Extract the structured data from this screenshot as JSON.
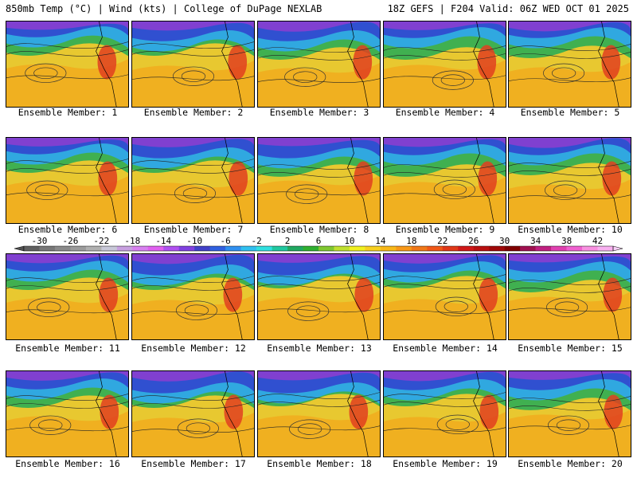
{
  "header": {
    "left": "850mb Temp (°C) | Wind (kts) | College of DuPage NEXLAB",
    "right": "18Z GEFS | F204 Valid: 06Z WED OCT 01 2025"
  },
  "members": [
    {
      "label": "Ensemble Member: 1"
    },
    {
      "label": "Ensemble Member: 2"
    },
    {
      "label": "Ensemble Member: 3"
    },
    {
      "label": "Ensemble Member: 4"
    },
    {
      "label": "Ensemble Member: 5"
    },
    {
      "label": "Ensemble Member: 6"
    },
    {
      "label": "Ensemble Member: 7"
    },
    {
      "label": "Ensemble Member: 8"
    },
    {
      "label": "Ensemble Member: 9"
    },
    {
      "label": "Ensemble Member: 10"
    },
    {
      "label": "Ensemble Member: 11"
    },
    {
      "label": "Ensemble Member: 12"
    },
    {
      "label": "Ensemble Member: 13"
    },
    {
      "label": "Ensemble Member: 14"
    },
    {
      "label": "Ensemble Member: 15"
    },
    {
      "label": "Ensemble Member: 16"
    },
    {
      "label": "Ensemble Member: 17"
    },
    {
      "label": "Ensemble Member: 18"
    },
    {
      "label": "Ensemble Member: 19"
    },
    {
      "label": "Ensemble Member: 20"
    }
  ],
  "colorbar": {
    "ticks": [
      "-30",
      "-26",
      "-22",
      "-18",
      "-14",
      "-10",
      "-6",
      "-2",
      "2",
      "6",
      "10",
      "14",
      "18",
      "22",
      "26",
      "30",
      "34",
      "38",
      "42"
    ],
    "colors": [
      "#606060",
      "#787878",
      "#8a8a8a",
      "#9c9c9c",
      "#b0b0b0",
      "#c8c8d8",
      "#c8a0e0",
      "#d880f0",
      "#e060f0",
      "#b050f0",
      "#8040e0",
      "#4040c8",
      "#3060e0",
      "#3090f0",
      "#30c0f0",
      "#30e0e0",
      "#20c8a0",
      "#20a860",
      "#30b030",
      "#80c830",
      "#c0e030",
      "#f0f020",
      "#f8d020",
      "#f8b818",
      "#f89818",
      "#f07818",
      "#f05818",
      "#e03818",
      "#d01818",
      "#b81010",
      "#a00808",
      "#800000",
      "#a01050",
      "#c02080",
      "#e040b0",
      "#f060d0",
      "#f890e0",
      "#f8b0f0"
    ]
  }
}
